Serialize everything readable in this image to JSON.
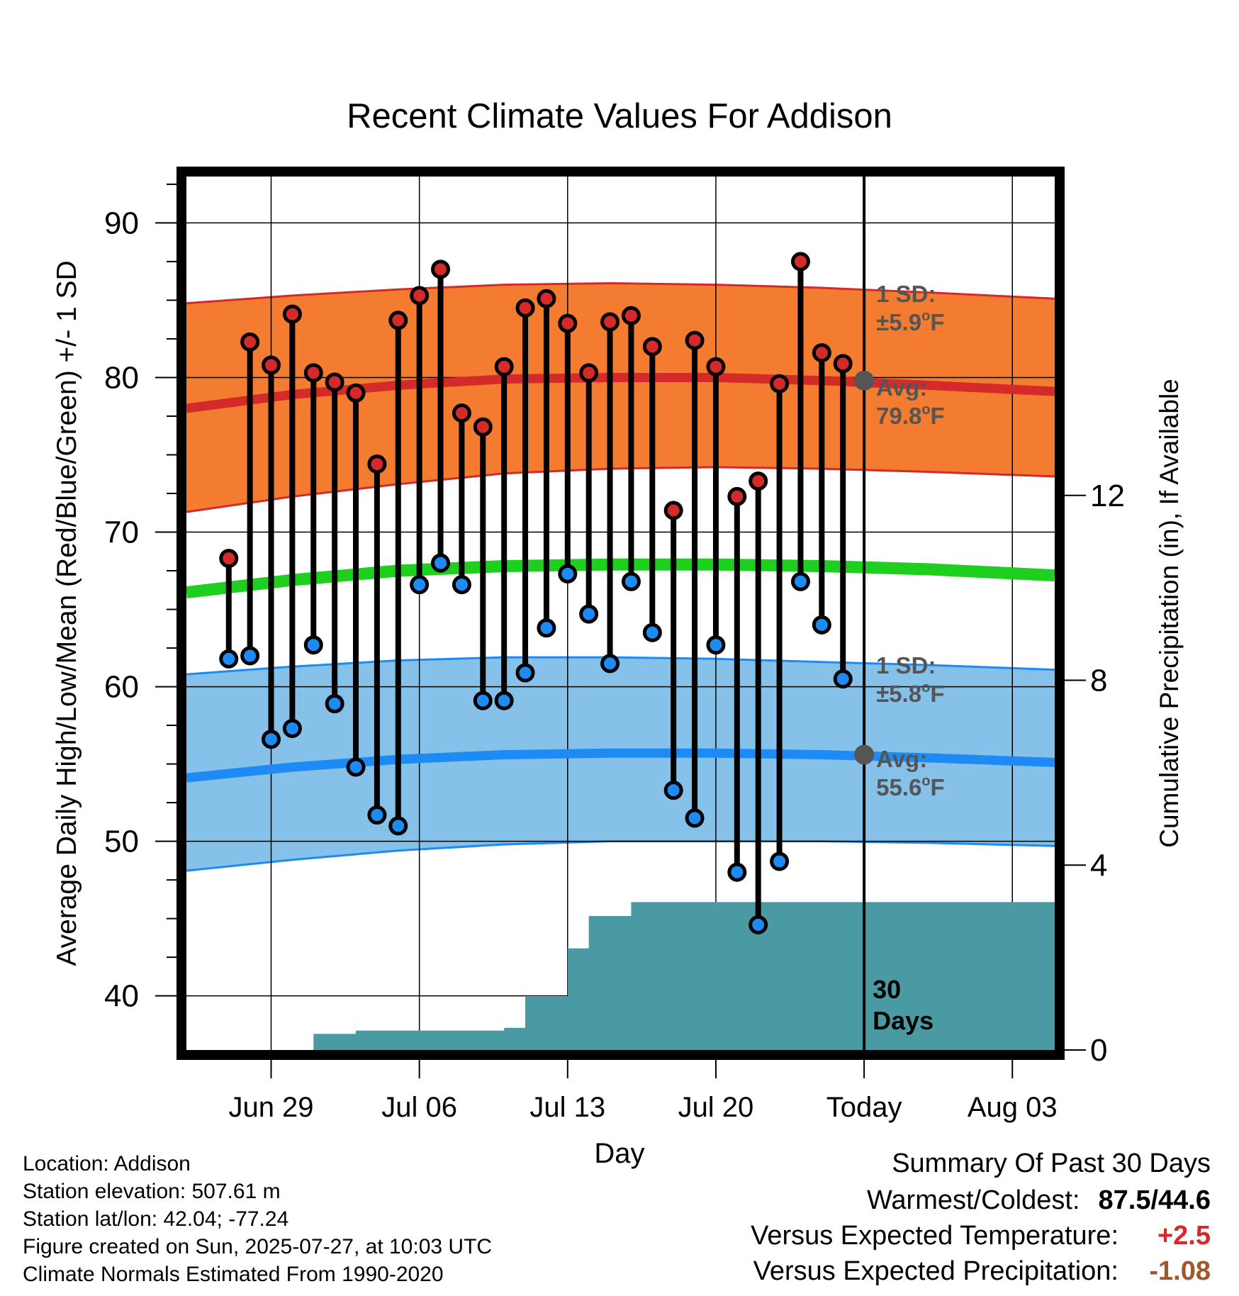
{
  "chart_data": {
    "type": "line",
    "title": "Recent Climate Values For Addison",
    "xlabel": "Day",
    "ylabel": "Average Daily High/Low/Mean (Red/Blue/Green) +/- 1 SD",
    "ylabel_right": "Cumulative Precipitation (in), If Available",
    "ylim": [
      36.5,
      93
    ],
    "ylim_right": [
      0,
      18.9
    ],
    "yticks": [
      40,
      50,
      60,
      70,
      80,
      90
    ],
    "yticks_right": [
      0,
      4,
      8,
      12
    ],
    "xlim": [
      "2025-06-25",
      "2025-08-05"
    ],
    "xticks": [
      {
        "date": "2025-06-29",
        "label": "Jun 29"
      },
      {
        "date": "2025-07-06",
        "label": "Jul 06"
      },
      {
        "date": "2025-07-13",
        "label": "Jul 13"
      },
      {
        "date": "2025-07-20",
        "label": "Jul 20"
      },
      {
        "date": "2025-07-27",
        "label": "Today"
      },
      {
        "date": "2025-08-03",
        "label": "Aug 03"
      }
    ],
    "grid": true,
    "today": "2025-07-27",
    "days_label": "30\nDays",
    "normal_high": {
      "dates": [
        "2025-06-25",
        "2025-06-30",
        "2025-07-05",
        "2025-07-10",
        "2025-07-15",
        "2025-07-20",
        "2025-07-25",
        "2025-07-30",
        "2025-08-05"
      ],
      "mean": [
        78.0,
        78.9,
        79.5,
        79.9,
        80.0,
        80.0,
        79.8,
        79.5,
        79.1
      ],
      "upper": [
        84.8,
        85.3,
        85.7,
        86.0,
        86.1,
        86.0,
        85.8,
        85.5,
        85.1
      ],
      "lower": [
        71.3,
        72.3,
        73.1,
        73.8,
        74.1,
        74.2,
        74.1,
        73.9,
        73.6
      ]
    },
    "normal_mean": {
      "dates": [
        "2025-06-25",
        "2025-06-30",
        "2025-07-05",
        "2025-07-10",
        "2025-07-15",
        "2025-07-20",
        "2025-07-25",
        "2025-07-30",
        "2025-08-05"
      ],
      "values": [
        66.1,
        66.9,
        67.5,
        67.8,
        67.9,
        67.9,
        67.8,
        67.6,
        67.2
      ]
    },
    "normal_low": {
      "dates": [
        "2025-06-25",
        "2025-06-30",
        "2025-07-05",
        "2025-07-10",
        "2025-07-15",
        "2025-07-20",
        "2025-07-25",
        "2025-07-30",
        "2025-08-05"
      ],
      "mean": [
        54.1,
        54.8,
        55.3,
        55.6,
        55.7,
        55.7,
        55.6,
        55.4,
        55.1
      ],
      "upper": [
        60.8,
        61.3,
        61.7,
        61.9,
        61.9,
        61.8,
        61.6,
        61.4,
        61.1
      ],
      "lower": [
        48.1,
        48.8,
        49.4,
        49.8,
        50.0,
        50.0,
        50.0,
        49.9,
        49.7
      ]
    },
    "observed": {
      "dates": [
        "2025-06-27",
        "2025-06-28",
        "2025-06-29",
        "2025-06-30",
        "2025-07-01",
        "2025-07-02",
        "2025-07-03",
        "2025-07-04",
        "2025-07-05",
        "2025-07-06",
        "2025-07-07",
        "2025-07-08",
        "2025-07-09",
        "2025-07-10",
        "2025-07-11",
        "2025-07-12",
        "2025-07-13",
        "2025-07-14",
        "2025-07-15",
        "2025-07-16",
        "2025-07-17",
        "2025-07-18",
        "2025-07-19",
        "2025-07-20",
        "2025-07-21",
        "2025-07-22",
        "2025-07-23",
        "2025-07-24",
        "2025-07-25",
        "2025-07-26"
      ],
      "high": [
        68.3,
        82.3,
        80.8,
        84.1,
        80.3,
        79.7,
        79.0,
        74.4,
        83.7,
        85.3,
        87.0,
        77.7,
        76.8,
        80.7,
        84.5,
        85.1,
        83.5,
        80.3,
        83.6,
        84.0,
        82.0,
        71.4,
        82.4,
        80.7,
        72.3,
        73.3,
        79.6,
        87.5,
        81.6,
        80.9
      ],
      "low": [
        61.8,
        62.0,
        56.6,
        57.3,
        62.7,
        58.9,
        54.8,
        51.7,
        51.0,
        66.6,
        68.0,
        66.6,
        59.1,
        59.1,
        60.9,
        63.8,
        67.3,
        64.7,
        61.5,
        66.8,
        63.5,
        53.3,
        51.5,
        62.7,
        48.0,
        44.6,
        48.7,
        66.8,
        64.0,
        60.5
      ]
    },
    "precipitation": {
      "steps": [
        {
          "date": "2025-06-29",
          "value": 0.0
        },
        {
          "date": "2025-07-01",
          "value": 0.35
        },
        {
          "date": "2025-07-03",
          "value": 0.42
        },
        {
          "date": "2025-07-10",
          "value": 0.48
        },
        {
          "date": "2025-07-11",
          "value": 1.15
        },
        {
          "date": "2025-07-13",
          "value": 2.2
        },
        {
          "date": "2025-07-14",
          "value": 2.9
        },
        {
          "date": "2025-07-16",
          "value": 3.2
        }
      ],
      "final": 3.2
    },
    "annotations": {
      "high_sd_label": "1 SD:",
      "high_sd_value": "±5.9",
      "high_avg_label": "Avg:",
      "high_avg_value": "79.8",
      "low_sd_label": "1 SD:",
      "low_sd_value": "±5.8",
      "low_avg_label": "Avg:",
      "low_avg_value": "55.6",
      "unit": "F",
      "degree": "o"
    },
    "colors": {
      "high_band": "#f47c30",
      "high_line": "#d42a2a",
      "mean_line": "#1fcf1f",
      "low_band": "#85c1e8",
      "low_line": "#1e8bf5",
      "precip": "#4a9aa3",
      "high_marker": "#d42a2a",
      "low_marker": "#1e8bf5",
      "annotation_text": "#555555"
    }
  },
  "info": {
    "location": "Location: Addison",
    "elevation": "Station elevation: 507.61 m",
    "latlon": "Station lat/lon: 42.04; -77.24",
    "created": "Figure created on Sun, 2025-07-27, at 10:03 UTC",
    "normals": "Climate Normals Estimated From 1990-2020"
  },
  "summary": {
    "title": "Summary Of Past 30 Days",
    "warm_cold_label": "Warmest/Coldest:",
    "warm_cold_value": "87.5/44.6",
    "temp_label": "Versus Expected Temperature:",
    "temp_value": "+2.5",
    "temp_color": "#d42a2a",
    "precip_label": "Versus Expected Precipitation:",
    "precip_value": "-1.08",
    "precip_color": "#a0582a"
  }
}
